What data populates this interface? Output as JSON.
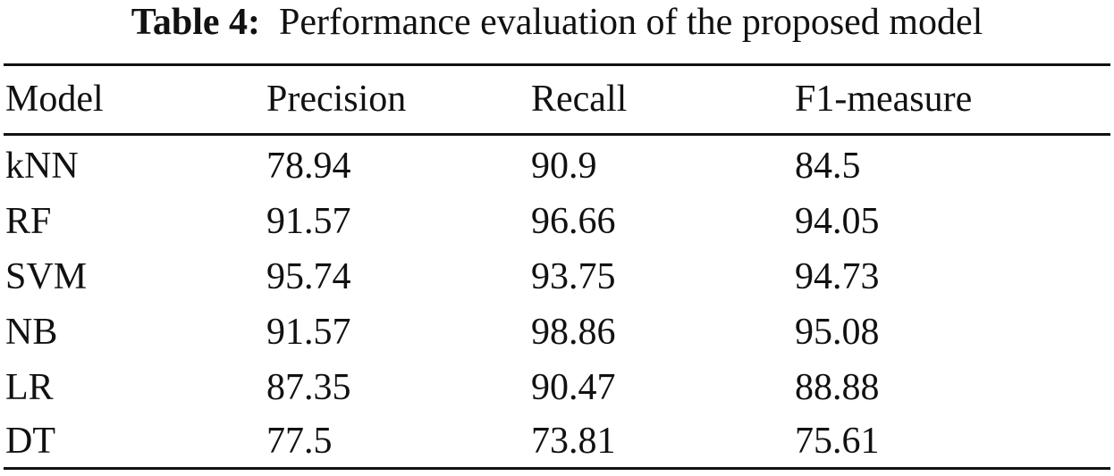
{
  "caption": {
    "label": "Table 4:",
    "text": "Performance evaluation of the proposed model"
  },
  "table": {
    "headers": [
      "Model",
      "Precision",
      "Recall",
      "F1-measure"
    ],
    "rows": [
      [
        "kNN",
        "78.94",
        "90.9",
        "84.5"
      ],
      [
        "RF",
        "91.57",
        "96.66",
        "94.05"
      ],
      [
        "SVM",
        "95.74",
        "93.75",
        "94.73"
      ],
      [
        "NB",
        "91.57",
        "98.86",
        "95.08"
      ],
      [
        "LR",
        "87.35",
        "90.47",
        "88.88"
      ],
      [
        "DT",
        "77.5",
        "73.81",
        "75.61"
      ]
    ]
  }
}
